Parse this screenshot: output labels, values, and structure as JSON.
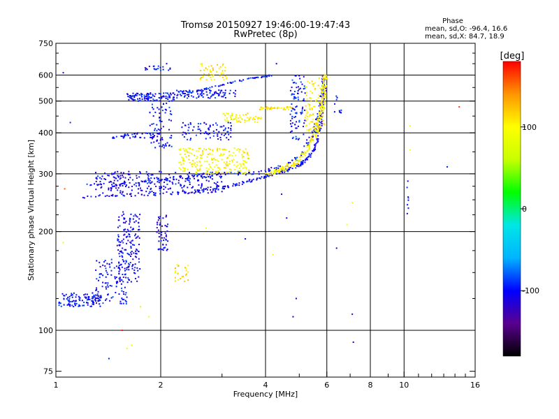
{
  "chart_data": {
    "type": "scatter",
    "title": "Tromsø 20150927 19:46:00-19:47:43",
    "subtitle": "RwPretec (8p)",
    "xlabel": "Frequency [MHz]",
    "ylabel": "Stationary phase Virtual Height [km]",
    "x_scale": "log",
    "y_scale": "log",
    "xlim": [
      1,
      16
    ],
    "ylim": [
      72,
      750
    ],
    "x_ticks": [
      {
        "value": 1,
        "label": "1"
      },
      {
        "value": 2,
        "label": "2"
      },
      {
        "value": 4,
        "label": "4"
      },
      {
        "value": 6,
        "label": "6"
      },
      {
        "value": 8,
        "label": "8"
      },
      {
        "value": 10,
        "label": "10"
      },
      {
        "value": 16,
        "label": "16"
      }
    ],
    "x_gridlines": [
      2,
      4,
      6,
      8,
      10
    ],
    "y_ticks": [
      {
        "value": 75,
        "label": "75"
      },
      {
        "value": 100,
        "label": "100"
      },
      {
        "value": 200,
        "label": "200"
      },
      {
        "value": 300,
        "label": "300"
      },
      {
        "value": 400,
        "label": "400"
      },
      {
        "value": 500,
        "label": "500"
      },
      {
        "value": 600,
        "label": "600"
      },
      {
        "value": 750,
        "label": "750"
      }
    ],
    "y_gridlines": [
      100,
      200,
      300,
      400,
      500,
      600
    ],
    "grid": true,
    "stats_header": "Phase",
    "stats_lines": [
      "mean, sd,O: -96.4, 16.6",
      "mean, sd,X:  84.7, 18.9"
    ],
    "colorbar": {
      "label": "[deg]",
      "range": [
        -180,
        180
      ],
      "ticks": [
        {
          "value": 100,
          "label": "100"
        },
        {
          "value": 0,
          "label": "0"
        },
        {
          "value": -100,
          "label": "-100"
        }
      ],
      "colors": [
        "#000000",
        "#5a0090",
        "#0000ff",
        "#00b4ff",
        "#00e6e6",
        "#00ff00",
        "#c8ff00",
        "#ffff00",
        "#ff9600",
        "#ff0000"
      ]
    },
    "series": [
      {
        "type": "strip",
        "f": [
          1.02,
          1.35
        ],
        "h": [
          118,
          130
        ],
        "phase": -100,
        "n": 120
      },
      {
        "type": "strip",
        "f": [
          1.3,
          1.62
        ],
        "h": [
          120,
          165
        ],
        "phase": -100,
        "n": 110
      },
      {
        "type": "strip",
        "f": [
          1.5,
          1.75
        ],
        "h": [
          140,
          230
        ],
        "phase": -105,
        "n": 160
      },
      {
        "type": "strip",
        "f": [
          1.95,
          2.1
        ],
        "h": [
          175,
          225
        ],
        "phase": -110,
        "n": 50
      },
      {
        "type": "curve",
        "points": [
          [
            1.2,
            255
          ],
          [
            1.5,
            258
          ],
          [
            2.0,
            260
          ],
          [
            2.5,
            264
          ],
          [
            3.0,
            272
          ],
          [
            3.5,
            283
          ],
          [
            4.0,
            295
          ],
          [
            4.5,
            305
          ],
          [
            5.0,
            318
          ],
          [
            5.3,
            335
          ],
          [
            5.55,
            360
          ],
          [
            5.75,
            420
          ],
          [
            5.85,
            520
          ],
          [
            5.88,
            600
          ]
        ],
        "phase": -105,
        "spread": 0.02,
        "n": 260
      },
      {
        "type": "curve",
        "points": [
          [
            1.2,
            275
          ],
          [
            1.6,
            280
          ],
          [
            2.0,
            286
          ],
          [
            2.6,
            295
          ],
          [
            3.2,
            300
          ],
          [
            4.0,
            305
          ],
          [
            4.6,
            318
          ],
          [
            5.1,
            345
          ],
          [
            5.5,
            400
          ],
          [
            5.75,
            470
          ],
          [
            5.9,
            560
          ]
        ],
        "phase": -100,
        "spread": 0.03,
        "n": 200
      },
      {
        "type": "strip",
        "f": [
          1.3,
          3.0
        ],
        "h": [
          262,
          305
        ],
        "phase": -105,
        "n": 250
      },
      {
        "type": "curve",
        "points": [
          [
            4.0,
            298
          ],
          [
            4.5,
            310
          ],
          [
            5.0,
            330
          ],
          [
            5.4,
            370
          ],
          [
            5.7,
            430
          ],
          [
            5.85,
            500
          ],
          [
            5.95,
            600
          ]
        ],
        "phase": 100,
        "spread": 0.03,
        "n": 230
      },
      {
        "type": "strip",
        "f": [
          2.25,
          3.6
        ],
        "h": [
          300,
          360
        ],
        "phase": 100,
        "n": 220
      },
      {
        "type": "strip",
        "f": [
          3.0,
          3.9
        ],
        "h": [
          430,
          460
        ],
        "phase": 100,
        "n": 60
      },
      {
        "type": "strip",
        "f": [
          3.8,
          4.8
        ],
        "h": [
          470,
          480
        ],
        "phase": 110,
        "n": 40
      },
      {
        "type": "strip",
        "f": [
          5.2,
          5.95
        ],
        "h": [
          400,
          590
        ],
        "phase": 105,
        "n": 90
      },
      {
        "type": "strip",
        "f": [
          1.45,
          2.15
        ],
        "h": [
          385,
          400
        ],
        "phase": -100,
        "n": 50
      },
      {
        "type": "strip",
        "f": [
          1.6,
          2.2
        ],
        "h": [
          500,
          530
        ],
        "phase": -100,
        "n": 110
      },
      {
        "type": "strip",
        "f": [
          2.2,
          3.3
        ],
        "h": [
          510,
          540
        ],
        "phase": -100,
        "n": 90
      },
      {
        "type": "curve",
        "points": [
          [
            2.2,
            520
          ],
          [
            2.6,
            540
          ],
          [
            3.0,
            560
          ],
          [
            3.6,
            585
          ],
          [
            4.2,
            600
          ]
        ],
        "phase": -95,
        "spread": 0.01,
        "n": 60
      },
      {
        "type": "strip",
        "f": [
          1.85,
          2.15
        ],
        "h": [
          360,
          500
        ],
        "phase": -100,
        "n": 70
      },
      {
        "type": "strip",
        "f": [
          2.3,
          3.2
        ],
        "h": [
          380,
          430
        ],
        "phase": -100,
        "n": 80
      },
      {
        "type": "strip",
        "f": [
          2.6,
          3.1
        ],
        "h": [
          580,
          650
        ],
        "phase": 110,
        "n": 50
      },
      {
        "type": "strip",
        "f": [
          1.8,
          2.15
        ],
        "h": [
          620,
          640
        ],
        "phase": -100,
        "n": 20
      },
      {
        "type": "strip",
        "f": [
          4.7,
          5.2
        ],
        "h": [
          380,
          600
        ],
        "phase": -95,
        "n": 90
      },
      {
        "type": "strip",
        "f": [
          2.2,
          2.4
        ],
        "h": [
          140,
          160
        ],
        "phase": 110,
        "n": 25
      },
      {
        "type": "strip",
        "f": [
          10.2,
          10.3
        ],
        "h": [
          225,
          290
        ],
        "phase": -100,
        "n": 8
      },
      {
        "type": "strip",
        "f": [
          6.3,
          6.6
        ],
        "h": [
          450,
          520
        ],
        "phase": -100,
        "n": 10
      },
      {
        "type": "points",
        "phase": -100,
        "pts": [
          [
            1.05,
            610
          ],
          [
            1.1,
            430
          ],
          [
            1.32,
            295
          ],
          [
            2.08,
            650
          ],
          [
            4.3,
            650
          ],
          [
            4.45,
            260
          ],
          [
            4.6,
            220
          ],
          [
            4.9,
            125
          ],
          [
            4.8,
            110
          ],
          [
            6.4,
            178
          ],
          [
            7.1,
            112
          ],
          [
            7.15,
            92
          ],
          [
            13.3,
            315
          ],
          [
            1.42,
            82
          ],
          [
            3.5,
            190
          ]
        ]
      },
      {
        "type": "points",
        "phase": 100,
        "pts": [
          [
            1.6,
            88
          ],
          [
            1.65,
            90
          ],
          [
            1.75,
            118
          ],
          [
            1.85,
            110
          ],
          [
            2.7,
            205
          ],
          [
            4.2,
            170
          ],
          [
            10.4,
            420
          ],
          [
            10.4,
            355
          ],
          [
            7.1,
            245
          ],
          [
            6.85,
            210
          ],
          [
            1.05,
            185
          ]
        ]
      },
      {
        "type": "points",
        "phase": 160,
        "pts": [
          [
            14.4,
            480
          ],
          [
            1.06,
            270
          ],
          [
            1.55,
            100
          ]
        ]
      }
    ]
  }
}
